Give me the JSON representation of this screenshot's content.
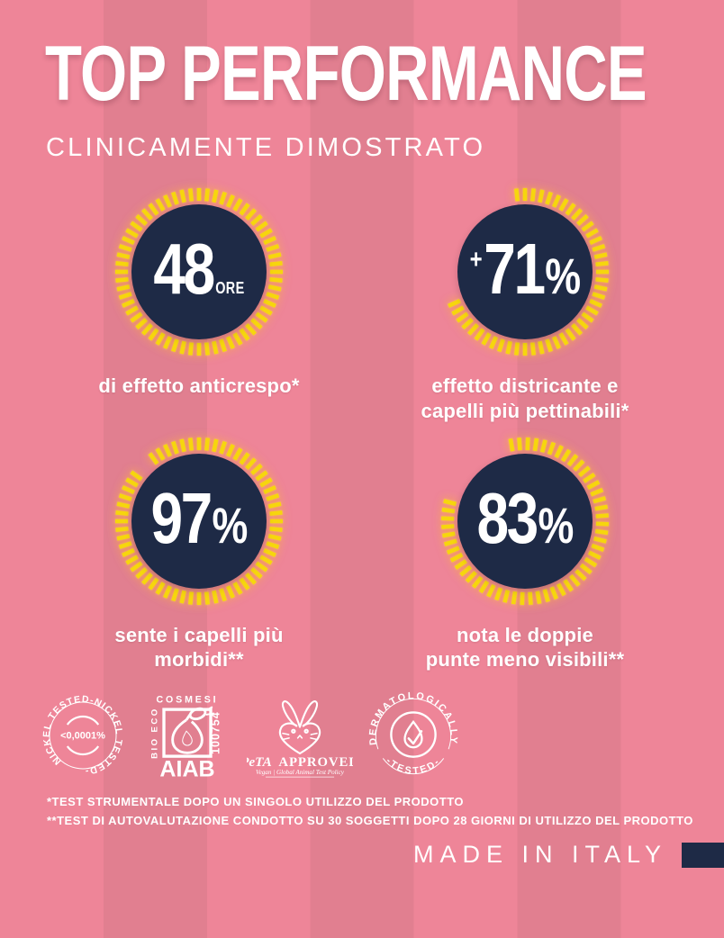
{
  "colors": {
    "pink-light": "#ee8598",
    "pink-dark": "#e17f90",
    "navy": "#1e2a46",
    "yellow": "#f6d60d",
    "white": "#ffffff"
  },
  "header": {
    "title": "TOP PERFORMANCE",
    "subtitle": "CLINICAMENTE DIMOSTRATO"
  },
  "chart_data": {
    "type": "gauge",
    "title": "TOP PERFORMANCE",
    "subtitle": "CLINICAMENTE DIMOSTRATO",
    "ring_color": "#f6d60d",
    "disc_color": "#1e2a46",
    "tick_count_full": 60,
    "gauges": [
      {
        "prefix": "",
        "value": "48",
        "suffix": "ORE",
        "percent": 100,
        "start_deg": 0,
        "caption_lines": [
          "di effetto anticrespo*"
        ]
      },
      {
        "prefix": "+",
        "value": "71",
        "suffix": "%",
        "percent": 71,
        "start_deg": -6,
        "caption_lines": [
          "effetto districante e",
          "capelli più pettinabili*"
        ]
      },
      {
        "prefix": "",
        "value": "97",
        "suffix": "%",
        "percent": 97,
        "start_deg": -36,
        "caption_lines": [
          "sente i capelli più",
          "morbidi**"
        ]
      },
      {
        "prefix": "",
        "value": "83",
        "suffix": "%",
        "percent": 83,
        "start_deg": -10,
        "caption_lines": [
          "nota le doppie",
          "punte meno visibili**"
        ]
      }
    ]
  },
  "badges": {
    "nickel": {
      "ring_text": "NICKEL TESTED-NICKEL TESTED-",
      "center_text": "<0,0001%"
    },
    "aiab": {
      "top": "COSMESI",
      "side_left": "BIO ECO",
      "name": "AIAB",
      "side_right": "100754"
    },
    "peta": {
      "brand": "PeTA",
      "label": "APPROVED",
      "subtext": "Vegan | Global Animal Test Policy"
    },
    "derm": {
      "arc_top": "DERMATOLOGICALLY",
      "arc_bottom": "-TESTED-"
    }
  },
  "footnotes": {
    "line1": "*TEST STRUMENTALE DOPO UN SINGOLO UTILIZZO DEL PRODOTTO",
    "line2": "**TEST DI AUTOVALUTAZIONE CONDOTTO SU 30 SOGGETTI DOPO 28 GIORNI DI UTILIZZO DEL PRODOTTO"
  },
  "footer": {
    "made_in": "MADE IN ITALY"
  }
}
